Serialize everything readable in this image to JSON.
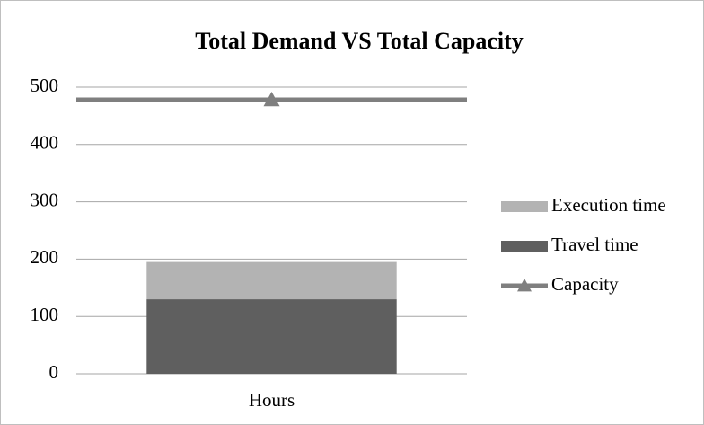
{
  "chart_data": {
    "type": "bar",
    "title": "Total Demand VS Total Capacity",
    "categories": [
      "Hours"
    ],
    "series": [
      {
        "name": "Execution time",
        "color": "#b3b3b3",
        "values": [
          65
        ]
      },
      {
        "name": "Travel time",
        "color": "#5f5f5f",
        "values": [
          130
        ]
      },
      {
        "name": "Capacity",
        "color": "#7f7f7f",
        "type": "line",
        "marker": "triangle",
        "values": [
          478
        ]
      }
    ],
    "stacked": true,
    "ylim": [
      0,
      500
    ],
    "yticks": [
      0,
      100,
      200,
      300,
      400,
      500
    ],
    "grid": true,
    "legend": "right"
  }
}
